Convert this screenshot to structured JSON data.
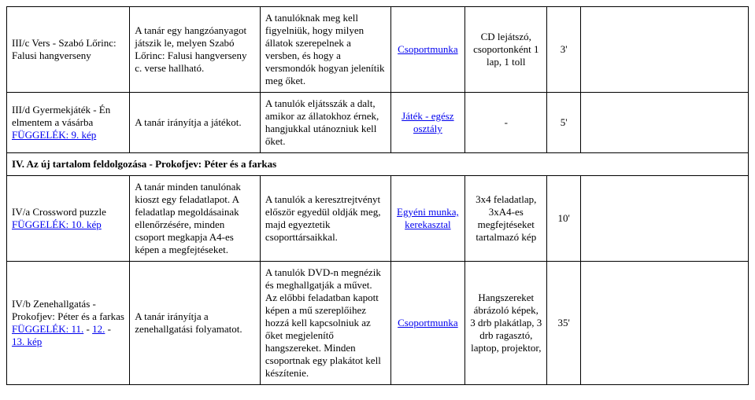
{
  "table": {
    "border_color": "#000000",
    "background_color": "#ffffff",
    "font_family": "Times New Roman",
    "font_size_pt": 10,
    "link_color": "#0000ee"
  },
  "rows": {
    "r0": {
      "c0_a": "III/c Vers - Szabó Lőrinc: Falusi hangverseny",
      "c1": "A tanár egy hangzóanyagot játszik le, melyen Szabó Lőrinc: Falusi hangverseny c. verse hallható.",
      "c2": "A tanulóknak meg kell figyelniük, hogy milyen állatok szerepelnek a versben, és hogy a versmondók hogyan jelenítik meg őket.",
      "c3": "Csoportmunka",
      "c4": "CD lejátszó, csoportonként 1 lap, 1 toll",
      "c5": "3'",
      "c6": ""
    },
    "r1": {
      "c0_a": "III/d Gyermekjáték - Én elmentem a vásárba",
      "c0_b": "FÜGGELÉK: 9. kép",
      "c1": "A tanár irányítja a játékot.",
      "c2": "A tanulók eljátsszák a dalt, amikor az állatokhoz érnek, hangjukkal utánozniuk kell őket.",
      "c3": "Játék - egész osztály",
      "c4": "-",
      "c5": "5'",
      "c6": ""
    },
    "section": "IV. Az új tartalom feldolgozása - Prokofjev: Péter és a farkas",
    "r2": {
      "c0_a": "IV/a Crossword puzzle",
      "c0_b": "FÜGGELÉK: 10. kép",
      "c1": "A tanár minden tanulónak kioszt egy feladatlapot. A feladatlap megoldásainak ellenőrzésére, minden csoport megkapja A4-es képen a megfejtéseket.",
      "c2": "A tanulók a keresztrejtvényt először egyedül oldják meg, majd egyeztetik csoporttársaikkal.",
      "c3": "Egyéni munka, kerekasztal",
      "c4": "3x4 feladatlap, 3xA4-es megfejtéseket tartalmazó kép",
      "c5": "10'",
      "c6": ""
    },
    "r3": {
      "c0_a": "IV/b Zenehallgatás - Prokofjev: Péter és a farkas",
      "c0_b": "FÜGGELÉK: 11.",
      "c0_c": " - ",
      "c0_d": "12.",
      "c0_e": " - ",
      "c0_f": "13. kép",
      "c1": "A tanár irányítja a zenehallgatási folyamatot.",
      "c2": "A tanulók DVD-n megnézik és meghallgatják a művet. Az előbbi feladatban kapott képen a mű szereplőihez hozzá kell kapcsolniuk az őket megjelenítő hangszereket. Minden csoportnak egy plakátot kell készítenie.",
      "c3": "Csoportmunka",
      "c4": "Hangszereket ábrázoló képek, 3 drb plakátlap, 3 drb ragasztó, laptop, projektor,",
      "c5": "35'",
      "c6": ""
    }
  }
}
